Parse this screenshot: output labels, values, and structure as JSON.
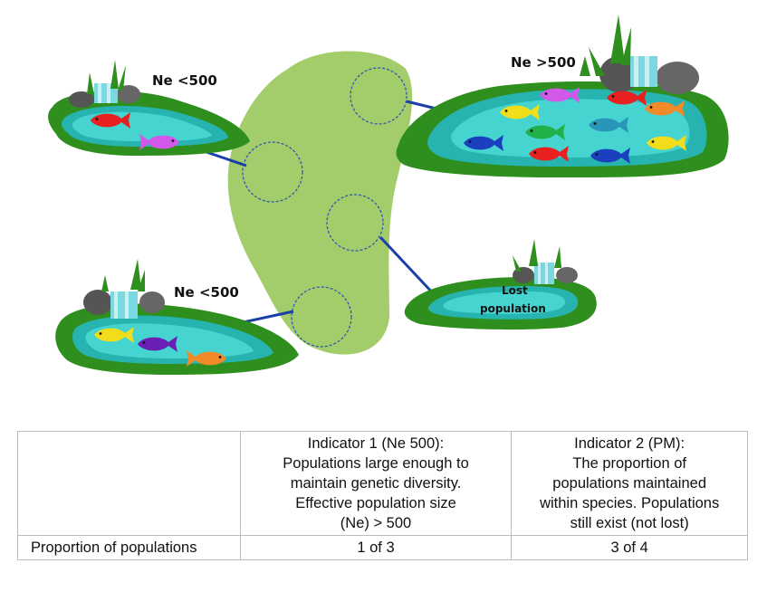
{
  "ponds": {
    "top_left_label": "Ne <500",
    "top_right_label": "Ne >500",
    "bottom_left_label": "Ne <500",
    "lost_label_line1": "Lost",
    "lost_label_line2": "population"
  },
  "colors": {
    "species_range": "#a3cc6a",
    "grass": "#2f8f1e",
    "water": "#45d4cf",
    "connector": "#1a3fa8",
    "circle_dash": "#2a4fb5"
  },
  "table": {
    "header_indicator1": [
      "Indicator 1 (Ne 500):",
      "Populations large enough to",
      "maintain genetic diversity.",
      "Effective population size",
      "(Ne) > 500"
    ],
    "header_indicator2": [
      "Indicator 2 (PM):",
      "The proportion of",
      "populations maintained",
      "within species. Populations",
      "still exist (not lost)"
    ],
    "row_label": "Proportion of populations",
    "indicator1_value": "1 of 3",
    "indicator2_value": "3 of 4"
  }
}
